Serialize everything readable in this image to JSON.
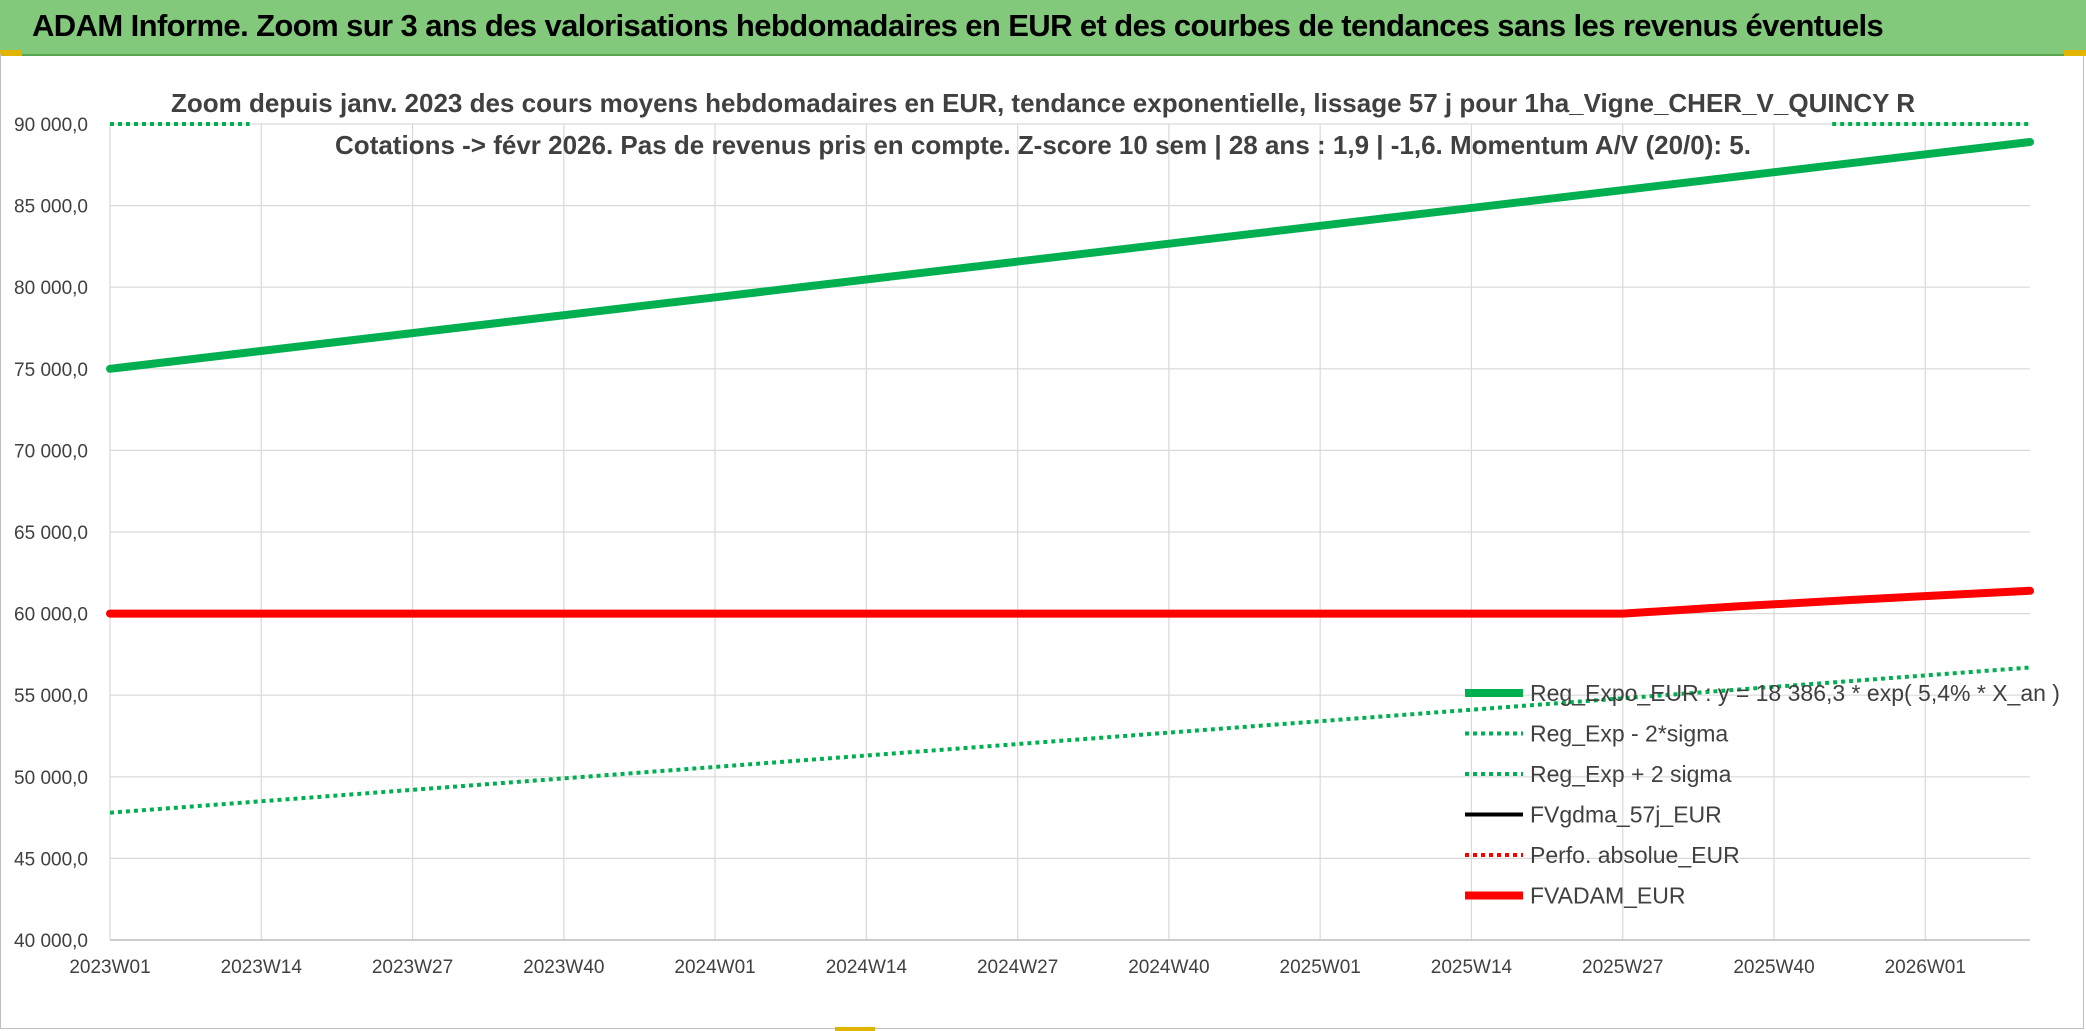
{
  "banner": {
    "title": "ADAM Informe. Zoom sur 3 ans des valorisations hebdomadaires en EUR et des courbes de tendances sans les revenus éventuels"
  },
  "chart_data": {
    "type": "line",
    "subtitle_lines": [
      "Zoom depuis janv. 2023 des cours moyens hebdomadaires en EUR, tendance exponentielle, lissage 57 j pour 1ha_Vigne_CHER_V_QUINCY R",
      "Cotations -> févr 2026. Pas de revenus pris en compte. Z-score 10 sem | 28 ans : 1,9 | -1,6. Momentum A/V (20/0): 5."
    ],
    "y_ticks": [
      "90 000,0",
      "85 000,0",
      "80 000,0",
      "75 000,0",
      "70 000,0",
      "65 000,0",
      "60 000,0",
      "55 000,0",
      "50 000,0",
      "45 000,0",
      "40 000,0"
    ],
    "x_ticks": [
      "2023W01",
      "2023W14",
      "2023W27",
      "2023W40",
      "2024W01",
      "2024W14",
      "2024W27",
      "2024W40",
      "2025W01",
      "2025W14",
      "2025W27",
      "2025W40",
      "2026W01"
    ],
    "ylim": [
      40000,
      90000
    ],
    "x_range_weeks": [
      0,
      165
    ],
    "grid": true,
    "legend_position": "bottom-right",
    "series": [
      {
        "name": "Reg_Expo_EUR : y = 18 386,3 * exp( 5,4% *  X_an )",
        "color": "#00b050",
        "style": "solid-thick",
        "points": [
          [
            0,
            75000
          ],
          [
            165,
            88900
          ]
        ]
      },
      {
        "name": "Reg_Exp - 2*sigma",
        "color": "#00b050",
        "style": "dotted",
        "points": [
          [
            0,
            47800
          ],
          [
            165,
            56700
          ]
        ]
      },
      {
        "name": "Reg_Exp + 2 sigma",
        "color": "#00b050",
        "style": "dotted",
        "points": [
          [
            0,
            90000
          ],
          [
            12,
            90000
          ],
          [
            148,
            90000
          ],
          [
            165,
            90000
          ]
        ]
      },
      {
        "name": "FVgdma_57j_EUR",
        "color": "#000000",
        "style": "solid",
        "points": [
          [
            0,
            60000
          ],
          [
            122,
            60000
          ],
          [
            130,
            60100
          ],
          [
            140,
            60500
          ],
          [
            150,
            60900
          ],
          [
            165,
            61400
          ]
        ]
      },
      {
        "name": "Perfo. absolue_EUR",
        "color": "#ff0000",
        "style": "dotted",
        "points": []
      },
      {
        "name": "FVADAM_EUR",
        "color": "#ff0000",
        "style": "solid-thick",
        "points": [
          [
            0,
            60000
          ],
          [
            130,
            60000
          ],
          [
            140,
            60450
          ],
          [
            150,
            60850
          ],
          [
            165,
            61400
          ]
        ]
      }
    ]
  }
}
